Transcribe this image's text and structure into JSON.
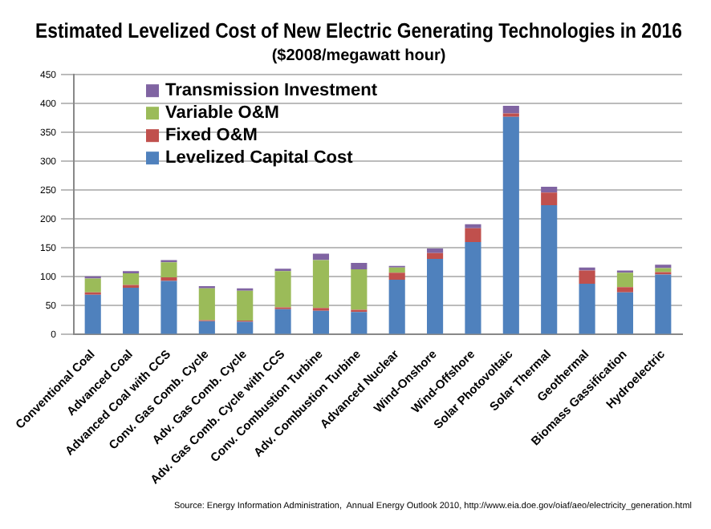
{
  "chart_data": {
    "type": "bar",
    "title": "Estimated Levelized Cost of New Electric Generating Technologies in 2016",
    "subtitle": "($2008/megawatt hour)",
    "stacked": true,
    "categories": [
      "Conventional Coal",
      "Advanced Coal",
      "Advanced Coal with CCS",
      "Conv. Gas Comb. Cycle",
      "Adv. Gas Comb. Cycle",
      "Adv. Gas Comb. Cycle with CCS",
      "Conv. Combustion Turbine",
      "Adv. Combustion Turbine",
      "Advanced Nuclear",
      "Wind-Onshore",
      "Wind-Offshore",
      "Solar Photovoltaic",
      "Solar Thermal",
      "Geothermal",
      "Biomass Gassification",
      "Hydroelectric"
    ],
    "series": [
      {
        "name": "Levelized Capital Cost",
        "color": "#4f81bd",
        "values": [
          69,
          81,
          93,
          23,
          22,
          44,
          41,
          39,
          95,
          131,
          160,
          377,
          224,
          88,
          73,
          104
        ]
      },
      {
        "name": "Fixed O&M",
        "color": "#c0504d",
        "values": [
          4,
          5,
          6,
          2,
          2,
          3,
          5,
          4,
          12,
          10,
          24,
          6,
          22,
          23,
          9,
          4
        ]
      },
      {
        "name": "Variable O&M",
        "color": "#9bbb59",
        "values": [
          24,
          20,
          26,
          55,
          52,
          63,
          83,
          70,
          9,
          0,
          0,
          0,
          0,
          0,
          25,
          7
        ]
      },
      {
        "name": "Transmission Investment",
        "color": "#8064a2",
        "values": [
          4,
          4,
          4,
          4,
          4,
          4,
          11,
          11,
          3,
          8,
          7,
          13,
          10,
          5,
          4,
          6
        ]
      }
    ],
    "ylim": [
      0,
      450
    ],
    "yticks": [
      0,
      50,
      100,
      150,
      200,
      250,
      300,
      350,
      400,
      450
    ],
    "grid": "y",
    "legend": "top left",
    "annotations": [
      "Source: Energy Information Administration,  Annual Energy Outlook 2010, http://www.eia.doe.gov/oiaf/aeo/electricity_generation.html"
    ]
  }
}
